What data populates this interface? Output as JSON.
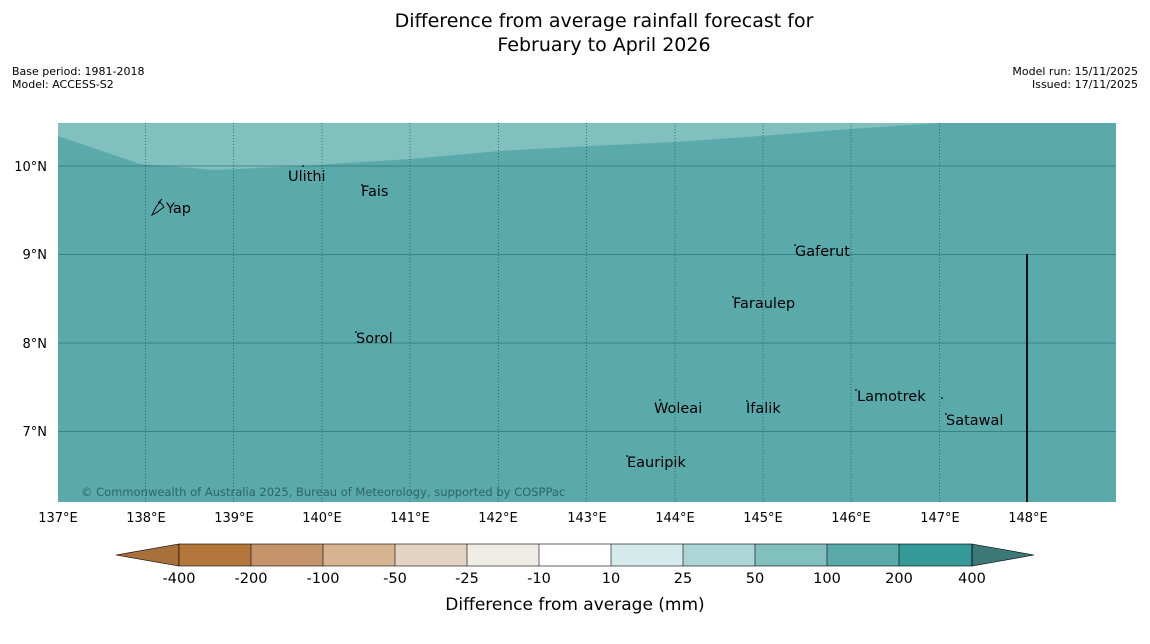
{
  "title_line1": "Difference from average rainfall forecast for",
  "title_line2": "February to April 2026",
  "meta": {
    "base_period": "Base period: 1981-2018",
    "model": "Model: ACCESS-S2",
    "model_run": "Model run: 15/11/2025",
    "issued": "Issued: 17/11/2025"
  },
  "map": {
    "lon_labels": [
      "137°E",
      "138°E",
      "139°E",
      "140°E",
      "141°E",
      "142°E",
      "143°E",
      "144°E",
      "145°E",
      "146°E",
      "147°E",
      "148°E"
    ],
    "lat_labels": [
      "10°N",
      "9°N",
      "8°N",
      "7°N"
    ],
    "places": [
      {
        "name": "Ulithi"
      },
      {
        "name": "Fais"
      },
      {
        "name": "Yap"
      },
      {
        "name": "Gaferut"
      },
      {
        "name": "Faraulep"
      },
      {
        "name": "Sorol"
      },
      {
        "name": "Lamotrek"
      },
      {
        "name": "Woleai"
      },
      {
        "name": "Ifalik"
      },
      {
        "name": "Satawal"
      },
      {
        "name": "Eauripik"
      }
    ],
    "copyright": "© Commonwealth of Australia 2025, Bureau of Meteorology, supported by COSPPac",
    "colors": {
      "main_field": "#5aaaab",
      "upper_field": "#82bfbf"
    }
  },
  "colorbar": {
    "labels": [
      "-400",
      "-200",
      "-100",
      "-50",
      "-25",
      "-10",
      "10",
      "25",
      "50",
      "100",
      "200",
      "400"
    ],
    "colors": [
      "#a8703a",
      "#b3773c",
      "#c49369",
      "#d6b391",
      "#e4d3c3",
      "#f0ece6",
      "#ffffff",
      "#d5eaea",
      "#acd5d5",
      "#82bfbf",
      "#5aaaab",
      "#359999",
      "#3c7878"
    ],
    "title": "Difference from average (mm)"
  }
}
